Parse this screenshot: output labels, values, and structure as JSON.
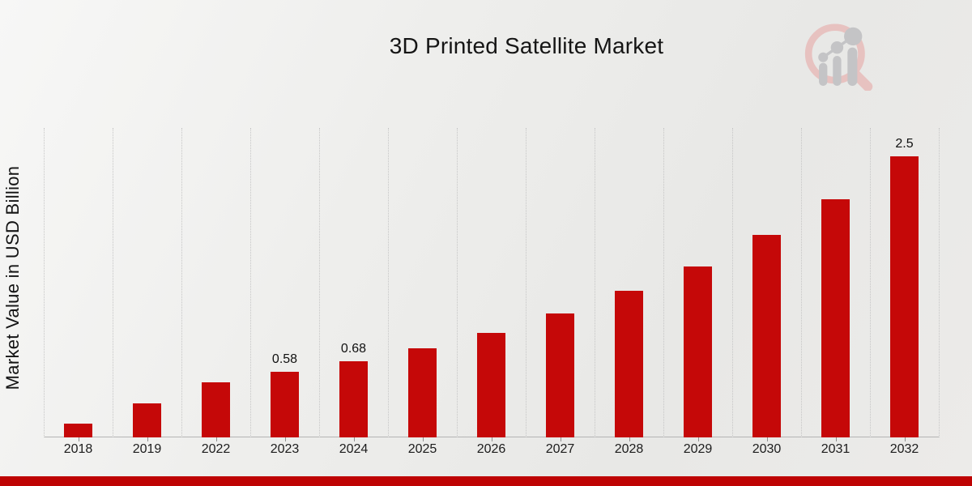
{
  "page": {
    "title": "3D Printed Satellite Market",
    "y_axis_label": "Market Value in USD Billion",
    "logo": "magnifier-bar-chart-logo",
    "background_color": "#EBEBEB",
    "accent_color": "#C50808",
    "footer_bar_color": "#BE0303"
  },
  "chart_data": {
    "type": "bar",
    "title": "3D Printed Satellite Market",
    "xlabel": "",
    "ylabel": "Market Value in USD Billion",
    "categories": [
      "2018",
      "2019",
      "2022",
      "2023",
      "2024",
      "2025",
      "2026",
      "2027",
      "2028",
      "2029",
      "2030",
      "2031",
      "2032"
    ],
    "values": [
      0.12,
      0.3,
      0.49,
      0.58,
      0.68,
      0.79,
      0.93,
      1.1,
      1.3,
      1.52,
      1.8,
      2.12,
      2.5
    ],
    "data_labels": {
      "2023": "0.58",
      "2024": "0.68",
      "2032": "2.5"
    },
    "bar_color": "#C50808",
    "ylim": [
      0,
      2.75
    ],
    "grid": "vertical dotted gridlines at category boundaries",
    "legend_position": "none"
  }
}
